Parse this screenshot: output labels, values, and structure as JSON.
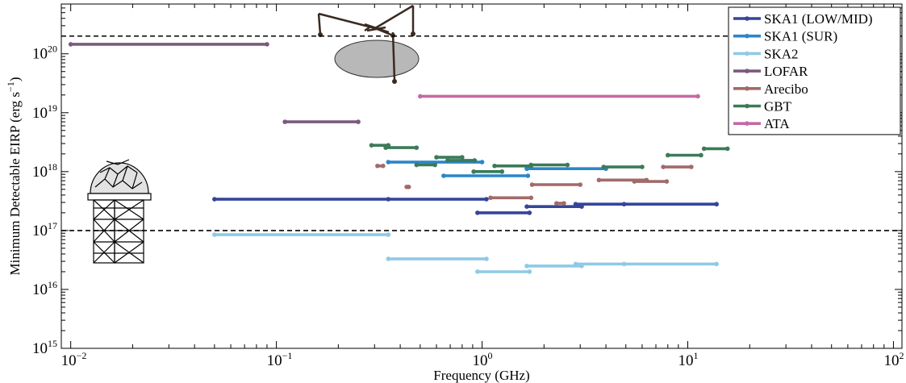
{
  "chart_data": {
    "type": "line",
    "xlabel": "Frequency (GHz)",
    "ylabel": "Minimum Detectable EIRP (erg s",
    "ylabel_sup": "−1",
    "ylabel_close": ")",
    "x_scale": "log",
    "y_scale": "log",
    "xlim": [
      0.009,
      110
    ],
    "ylim": [
      1000000000000000.0,
      7e+20
    ],
    "x_ticks": [
      {
        "value": 0.01,
        "base": "10",
        "exp": "−2"
      },
      {
        "value": 0.1,
        "base": "10",
        "exp": "−1"
      },
      {
        "value": 1,
        "base": "10",
        "exp": "0"
      },
      {
        "value": 10,
        "base": "10",
        "exp": "1"
      },
      {
        "value": 100,
        "base": "10",
        "exp": "2"
      }
    ],
    "y_ticks": [
      {
        "value": 1000000000000000.0,
        "base": "10",
        "exp": "15"
      },
      {
        "value": 1e+16,
        "base": "10",
        "exp": "16"
      },
      {
        "value": 1e+17,
        "base": "10",
        "exp": "17"
      },
      {
        "value": 1e+18,
        "base": "10",
        "exp": "18"
      },
      {
        "value": 1e+19,
        "base": "10",
        "exp": "19"
      },
      {
        "value": 1e+20,
        "base": "10",
        "exp": "20"
      }
    ],
    "reference_lines": [
      2e+20,
      1e+17
    ],
    "grid": false,
    "legend_position": "top-right",
    "series": [
      {
        "name": "SKA1 (LOW/MID)",
        "color": "#34459a",
        "segments": [
          {
            "x": [
              0.05,
              0.35,
              1.05
            ],
            "y": [
              3.4e+17,
              3.4e+17,
              3.4e+17
            ]
          },
          {
            "x": [
              0.95,
              1.7
            ],
            "y": [
              2e+17,
              2e+17
            ]
          },
          {
            "x": [
              1.65,
              3.05
            ],
            "y": [
              2.55e+17,
              2.55e+17
            ]
          },
          {
            "x": [
              2.85,
              4.9,
              13.8
            ],
            "y": [
              2.8e+17,
              2.8e+17,
              2.8e+17
            ]
          }
        ]
      },
      {
        "name": "SKA1 (SUR)",
        "color": "#2b86c9",
        "segments": [
          {
            "x": [
              0.35,
              1.0
            ],
            "y": [
              1.45e+18,
              1.45e+18
            ]
          },
          {
            "x": [
              0.65,
              1.67
            ],
            "y": [
              8.5e+17,
              8.5e+17
            ]
          },
          {
            "x": [
              1.65,
              4.0
            ],
            "y": [
              1.12e+18,
              1.12e+18
            ]
          }
        ]
      },
      {
        "name": "SKA2",
        "color": "#8ecae6",
        "segments": [
          {
            "x": [
              0.05,
              0.35
            ],
            "y": [
              8.5e+16,
              8.5e+16
            ]
          },
          {
            "x": [
              0.35,
              1.05
            ],
            "y": [
              3.3e+16,
              3.3e+16
            ]
          },
          {
            "x": [
              0.95,
              1.7
            ],
            "y": [
              2e+16,
              2e+16
            ]
          },
          {
            "x": [
              1.65,
              3.05
            ],
            "y": [
              2.5e+16,
              2.5e+16
            ]
          },
          {
            "x": [
              2.85,
              4.9,
              13.8
            ],
            "y": [
              2.7e+16,
              2.7e+16,
              2.7e+16
            ]
          }
        ]
      },
      {
        "name": "LOFAR",
        "color": "#7b5a7e",
        "segments": [
          {
            "x": [
              0.01,
              0.09
            ],
            "y": [
              1.45e+20,
              1.45e+20
            ]
          },
          {
            "x": [
              0.11,
              0.25
            ],
            "y": [
              7e+18,
              7e+18
            ]
          }
        ]
      },
      {
        "name": "Arecibo",
        "color": "#a26a6a",
        "segments": [
          {
            "x": [
              0.31,
              0.33
            ],
            "y": [
              1.25e+18,
              1.25e+18
            ]
          },
          {
            "x": [
              0.43,
              0.44
            ],
            "y": [
              5.5e+17,
              5.5e+17
            ]
          },
          {
            "x": [
              1.1,
              1.73
            ],
            "y": [
              3.6e+17,
              3.6e+17
            ]
          },
          {
            "x": [
              1.75,
              3.0
            ],
            "y": [
              6e+17,
              6e+17
            ]
          },
          {
            "x": [
              2.3,
              2.5
            ],
            "y": [
              2.9e+17,
              2.9e+17
            ]
          },
          {
            "x": [
              3.7,
              6.3
            ],
            "y": [
              7.2e+17,
              7.2e+17
            ]
          },
          {
            "x": [
              5.5,
              7.9
            ],
            "y": [
              6.8e+17,
              6.8e+17
            ]
          },
          {
            "x": [
              7.6,
              10.4
            ],
            "y": [
              1.2e+18,
              1.2e+18
            ]
          }
        ]
      },
      {
        "name": "GBT",
        "color": "#3c7a58",
        "segments": [
          {
            "x": [
              0.29,
              0.35
            ],
            "y": [
              2.8e+18,
              2.8e+18
            ]
          },
          {
            "x": [
              0.34,
              0.48
            ],
            "y": [
              2.55e+18,
              2.55e+18
            ]
          },
          {
            "x": [
              0.48,
              0.59
            ],
            "y": [
              1.3e+18,
              1.3e+18
            ]
          },
          {
            "x": [
              0.6,
              0.8
            ],
            "y": [
              1.75e+18,
              1.75e+18
            ]
          },
          {
            "x": [
              0.68,
              0.92
            ],
            "y": [
              1.55e+18,
              1.55e+18
            ]
          },
          {
            "x": [
              0.91,
              1.25
            ],
            "y": [
              1e+18,
              1e+18
            ]
          },
          {
            "x": [
              1.15,
              1.73
            ],
            "y": [
              1.25e+18,
              1.25e+18
            ]
          },
          {
            "x": [
              1.73,
              2.6
            ],
            "y": [
              1.3e+18,
              1.3e+18
            ]
          },
          {
            "x": [
              3.9,
              6.0
            ],
            "y": [
              1.2e+18,
              1.2e+18
            ]
          },
          {
            "x": [
              8.0,
              11.6
            ],
            "y": [
              1.9e+18,
              1.9e+18
            ]
          },
          {
            "x": [
              12.0,
              15.6
            ],
            "y": [
              2.45e+18,
              2.45e+18
            ]
          }
        ]
      },
      {
        "name": "ATA",
        "color": "#c46aa3",
        "segments": [
          {
            "x": [
              0.5,
              11.2
            ],
            "y": [
              1.9e+19,
              1.9e+19
            ]
          }
        ]
      }
    ]
  }
}
